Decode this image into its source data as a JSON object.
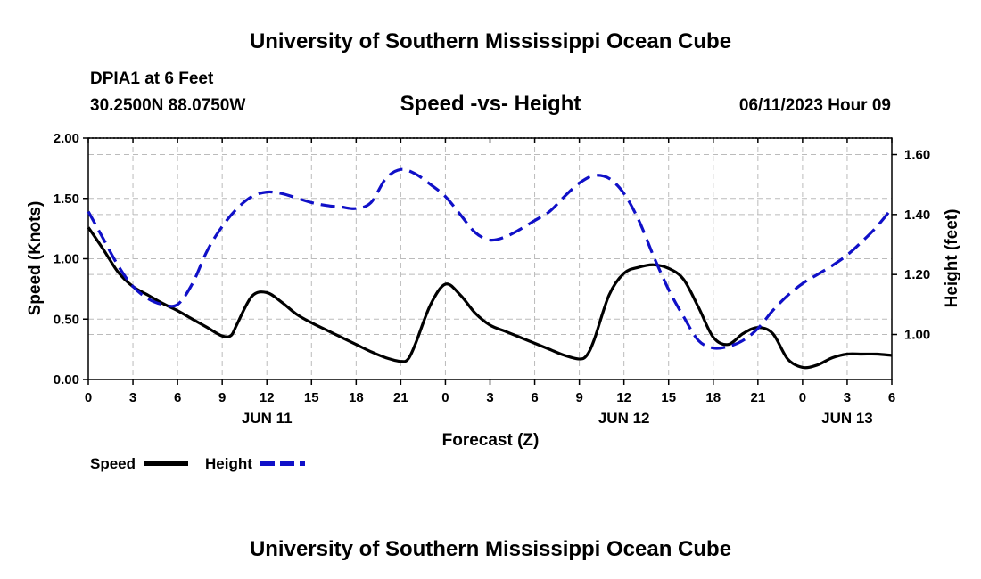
{
  "header": {
    "title": "University of Southern Mississippi Ocean Cube",
    "station": "DPIA1 at 6 Feet",
    "location": "30.2500N  88.0750W",
    "chart_title": "Speed -vs- Height",
    "datetime": "06/11/2023 Hour 09"
  },
  "footer": {
    "title": "University of Southern Mississippi Ocean Cube"
  },
  "colors": {
    "speed": "#000000",
    "height": "#1010c8",
    "grid": "#bbbbbb"
  },
  "chart_data": {
    "type": "line",
    "title": "Speed -vs- Height",
    "xlabel": "Forecast (Z)",
    "ylabel": "Speed (Knots)",
    "y2label": "Height (feet)",
    "x_unit": "hours from start (Jun 10 00Z)",
    "xlim": [
      0,
      54
    ],
    "ylim": [
      0,
      2.0
    ],
    "y2lim": [
      0.85,
      1.655
    ],
    "x_ticks": [
      0,
      3,
      6,
      9,
      12,
      15,
      18,
      21,
      24,
      27,
      30,
      33,
      36,
      39,
      42,
      45,
      48,
      51,
      54
    ],
    "x_tick_labels": [
      "0",
      "3",
      "6",
      "9",
      "12",
      "15",
      "18",
      "21",
      "0",
      "3",
      "6",
      "9",
      "12",
      "15",
      "18",
      "21",
      "0",
      "3",
      "6"
    ],
    "date_labels": [
      {
        "x": 12,
        "label": "JUN 11"
      },
      {
        "x": 36,
        "label": "JUN 12"
      },
      {
        "x": 51,
        "label": "JUN 13"
      }
    ],
    "y_ticks": [
      0,
      0.5,
      1.0,
      1.5,
      2.0
    ],
    "y_tick_labels": [
      "0.00",
      "0.50",
      "1.00",
      "1.50",
      "2.00"
    ],
    "y2_ticks": [
      1.0,
      1.2,
      1.4,
      1.6
    ],
    "y2_tick_labels": [
      "1.00",
      "1.20",
      "1.40",
      "1.60"
    ],
    "legend": [
      {
        "name": "Speed",
        "style": "solid"
      },
      {
        "name": "Height",
        "style": "dashed"
      }
    ],
    "legend_position": "bottom-left",
    "series": [
      {
        "name": "Speed",
        "axis": "left",
        "style": "solid",
        "x": [
          0,
          1,
          2,
          3,
          4,
          5,
          6,
          7,
          8,
          9,
          9.6,
          10,
          11,
          12,
          13,
          14,
          15,
          16,
          17,
          18,
          19,
          20,
          21,
          21.5,
          22,
          23,
          24,
          25,
          26,
          27,
          28,
          29,
          30,
          31,
          32,
          33,
          33.5,
          34,
          35,
          36,
          37,
          38,
          39,
          40,
          41,
          42,
          43,
          44,
          45,
          46,
          47,
          48,
          49,
          50,
          51,
          52,
          53,
          54
        ],
        "values": [
          1.26,
          1.08,
          0.89,
          0.77,
          0.7,
          0.63,
          0.57,
          0.5,
          0.43,
          0.36,
          0.365,
          0.46,
          0.69,
          0.72,
          0.64,
          0.54,
          0.47,
          0.41,
          0.35,
          0.29,
          0.23,
          0.18,
          0.15,
          0.17,
          0.3,
          0.62,
          0.79,
          0.7,
          0.55,
          0.45,
          0.4,
          0.35,
          0.3,
          0.25,
          0.2,
          0.17,
          0.2,
          0.33,
          0.7,
          0.88,
          0.93,
          0.95,
          0.92,
          0.83,
          0.6,
          0.35,
          0.29,
          0.38,
          0.43,
          0.38,
          0.17,
          0.1,
          0.12,
          0.18,
          0.21,
          0.21,
          0.21,
          0.2
        ]
      },
      {
        "name": "Height",
        "axis": "right",
        "style": "dashed",
        "x": [
          0,
          1,
          2,
          3,
          4,
          5,
          6,
          7,
          8,
          9,
          10,
          11,
          12,
          13,
          14,
          15,
          16,
          17,
          18,
          19,
          20,
          21,
          22,
          23,
          24,
          25,
          26,
          27,
          28,
          29,
          30,
          31,
          32,
          33,
          34,
          35,
          36,
          37,
          38,
          39,
          40,
          41,
          42,
          43,
          44,
          45,
          46,
          47,
          48,
          49,
          50,
          51,
          52,
          53,
          54
        ],
        "values": [
          1.41,
          1.32,
          1.23,
          1.16,
          1.12,
          1.1,
          1.1,
          1.17,
          1.28,
          1.36,
          1.42,
          1.46,
          1.475,
          1.47,
          1.455,
          1.44,
          1.43,
          1.425,
          1.42,
          1.44,
          1.52,
          1.55,
          1.535,
          1.5,
          1.46,
          1.4,
          1.34,
          1.315,
          1.325,
          1.35,
          1.38,
          1.41,
          1.46,
          1.505,
          1.53,
          1.52,
          1.47,
          1.38,
          1.26,
          1.15,
          1.06,
          0.98,
          0.955,
          0.96,
          0.98,
          1.02,
          1.08,
          1.13,
          1.17,
          1.2,
          1.23,
          1.265,
          1.31,
          1.36,
          1.42
        ]
      }
    ]
  }
}
